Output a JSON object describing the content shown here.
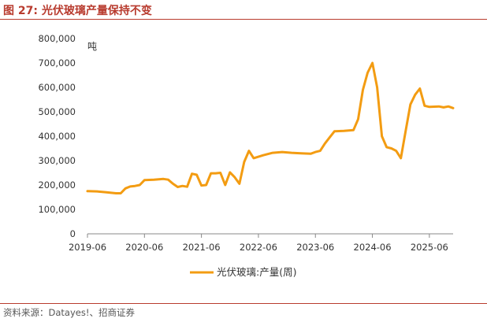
{
  "header": {
    "title": "图 27: 光伏玻璃产量保持不变"
  },
  "footer": {
    "source": "资料来源：Datayes!、招商证券"
  },
  "chart_data": {
    "type": "line",
    "unit_label": "吨",
    "y_ticks": [
      "800,000",
      "700,000",
      "600,000",
      "500,000",
      "400,000",
      "300,000",
      "200,000",
      "100,000",
      "0"
    ],
    "x_ticks": [
      "2019-06",
      "2020-06",
      "2021-06",
      "2022-06",
      "2023-06",
      "2024-06",
      "2025-06"
    ],
    "ylim": [
      0,
      800000
    ],
    "xlim": [
      "2019-06",
      "2025-11"
    ],
    "grid": false,
    "legend_position": "bottom-center",
    "colors": {
      "line": "#f39c12",
      "axis": "#888888"
    },
    "series": [
      {
        "name": "光伏玻璃:产量(周)",
        "points": [
          [
            "2019-06",
            175000
          ],
          [
            "2019-08",
            174000
          ],
          [
            "2019-10",
            170000
          ],
          [
            "2019-11",
            168000
          ],
          [
            "2019-12",
            166000
          ],
          [
            "2020-01",
            166000
          ],
          [
            "2020-02",
            186000
          ],
          [
            "2020-03",
            194000
          ],
          [
            "2020-04",
            196000
          ],
          [
            "2020-05",
            200000
          ],
          [
            "2020-06",
            220000
          ],
          [
            "2020-08",
            222000
          ],
          [
            "2020-10",
            225000
          ],
          [
            "2020-11",
            222000
          ],
          [
            "2020-12",
            205000
          ],
          [
            "2021-01",
            192000
          ],
          [
            "2021-02",
            196000
          ],
          [
            "2021-03",
            193000
          ],
          [
            "2021-04",
            246000
          ],
          [
            "2021-05",
            242000
          ],
          [
            "2021-06",
            198000
          ],
          [
            "2021-07",
            200000
          ],
          [
            "2021-08",
            248000
          ],
          [
            "2021-09",
            248000
          ],
          [
            "2021-10",
            250000
          ],
          [
            "2021-11",
            200000
          ],
          [
            "2021-12",
            252000
          ],
          [
            "2022-01",
            232000
          ],
          [
            "2022-02",
            205000
          ],
          [
            "2022-03",
            295000
          ],
          [
            "2022-04",
            340000
          ],
          [
            "2022-05",
            310000
          ],
          [
            "2022-07",
            322000
          ],
          [
            "2022-09",
            332000
          ],
          [
            "2022-11",
            335000
          ],
          [
            "2023-01",
            332000
          ],
          [
            "2023-03",
            330000
          ],
          [
            "2023-05",
            328000
          ],
          [
            "2023-06",
            335000
          ],
          [
            "2023-07",
            340000
          ],
          [
            "2023-08",
            370000
          ],
          [
            "2023-09",
            395000
          ],
          [
            "2023-10",
            420000
          ],
          [
            "2023-12",
            422000
          ],
          [
            "2024-02",
            425000
          ],
          [
            "2024-03",
            470000
          ],
          [
            "2024-04",
            590000
          ],
          [
            "2024-05",
            660000
          ],
          [
            "2024-06",
            700000
          ],
          [
            "2024-07",
            600000
          ],
          [
            "2024-08",
            400000
          ],
          [
            "2024-09",
            355000
          ],
          [
            "2024-10",
            350000
          ],
          [
            "2024-11",
            340000
          ],
          [
            "2024-12",
            310000
          ],
          [
            "2025-01",
            420000
          ],
          [
            "2025-02",
            530000
          ],
          [
            "2025-03",
            570000
          ],
          [
            "2025-04",
            595000
          ],
          [
            "2025-05",
            525000
          ],
          [
            "2025-06",
            520000
          ],
          [
            "2025-08",
            522000
          ],
          [
            "2025-09",
            518000
          ],
          [
            "2025-10",
            522000
          ],
          [
            "2025-11",
            515000
          ]
        ]
      }
    ]
  }
}
